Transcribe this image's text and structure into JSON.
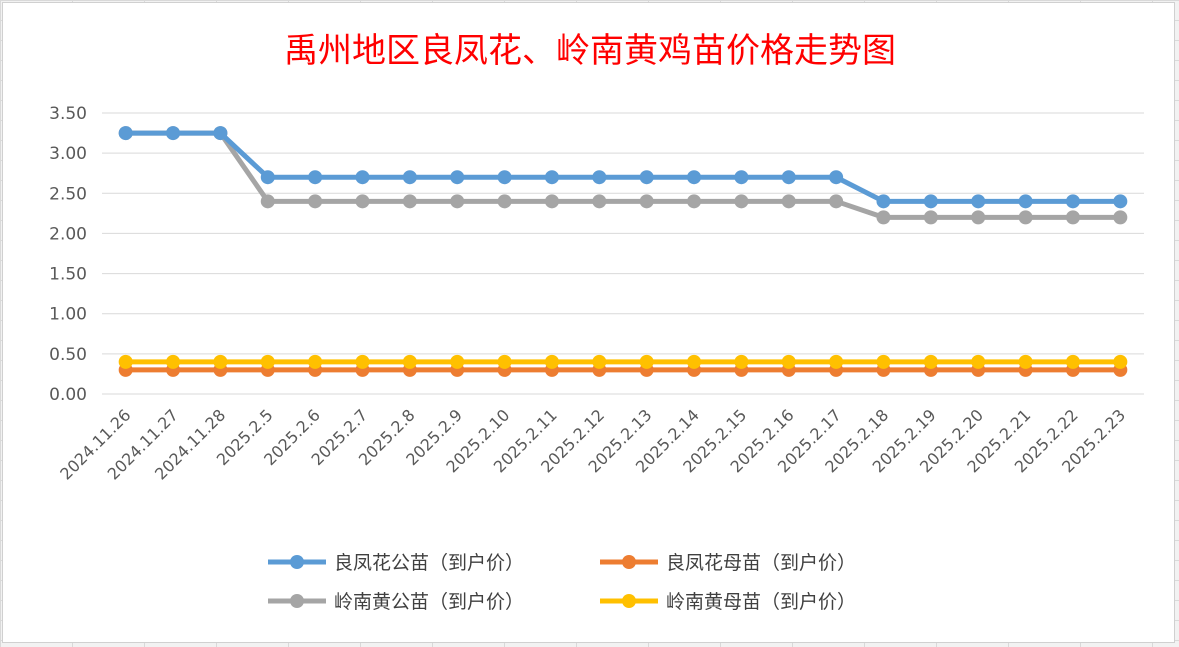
{
  "chart_data": {
    "type": "line",
    "title": "禹州地区良凤花、岭南黄鸡苗价格走势图",
    "xlabel": "",
    "ylabel": "",
    "ylim": [
      0,
      3.5
    ],
    "y_ticks": [
      "0.00",
      "0.50",
      "1.00",
      "1.50",
      "2.00",
      "2.50",
      "3.00",
      "3.50"
    ],
    "grid": true,
    "legend_position": "bottom",
    "categories": [
      "2024.11.26",
      "2024.11.27",
      "2024.11.28",
      "2025.2.5",
      "2025.2.6",
      "2025.2.7",
      "2025.2.8",
      "2025.2.9",
      "2025.2.10",
      "2025.2.11",
      "2025.2.12",
      "2025.2.13",
      "2025.2.14",
      "2025.2.15",
      "2025.2.16",
      "2025.2.17",
      "2025.2.18",
      "2025.2.19",
      "2025.2.20",
      "2025.2.21",
      "2025.2.22",
      "2025.2.23"
    ],
    "series": [
      {
        "name": "良凤花公苗（到户价）",
        "color": "#5b9bd5",
        "values": [
          3.25,
          3.25,
          3.25,
          2.7,
          2.7,
          2.7,
          2.7,
          2.7,
          2.7,
          2.7,
          2.7,
          2.7,
          2.7,
          2.7,
          2.7,
          2.7,
          2.4,
          2.4,
          2.4,
          2.4,
          2.4,
          2.4
        ]
      },
      {
        "name": "良凤花母苗（到户价）",
        "color": "#ed7d31",
        "values": [
          0.3,
          0.3,
          0.3,
          0.3,
          0.3,
          0.3,
          0.3,
          0.3,
          0.3,
          0.3,
          0.3,
          0.3,
          0.3,
          0.3,
          0.3,
          0.3,
          0.3,
          0.3,
          0.3,
          0.3,
          0.3,
          0.3
        ]
      },
      {
        "name": "岭南黄公苗（到户价）",
        "color": "#a5a5a5",
        "values": [
          3.25,
          3.25,
          3.25,
          2.4,
          2.4,
          2.4,
          2.4,
          2.4,
          2.4,
          2.4,
          2.4,
          2.4,
          2.4,
          2.4,
          2.4,
          2.4,
          2.2,
          2.2,
          2.2,
          2.2,
          2.2,
          2.2
        ]
      },
      {
        "name": "岭南黄母苗（到户价）",
        "color": "#ffc000",
        "values": [
          0.4,
          0.4,
          0.4,
          0.4,
          0.4,
          0.4,
          0.4,
          0.4,
          0.4,
          0.4,
          0.4,
          0.4,
          0.4,
          0.4,
          0.4,
          0.4,
          0.4,
          0.4,
          0.4,
          0.4,
          0.4,
          0.4
        ]
      }
    ]
  }
}
